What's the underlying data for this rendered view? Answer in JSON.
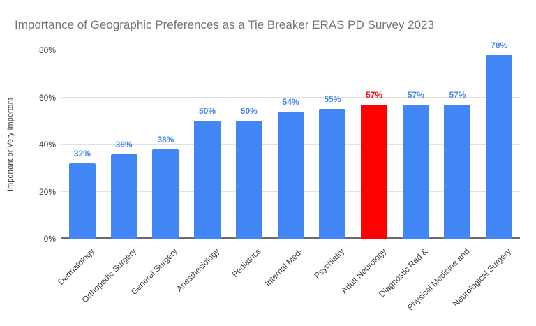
{
  "title": "Importance of Geographic Preferences as a Tie Breaker ERAS PD Survey 2023",
  "colors": {
    "bar": "#4285f4",
    "highlight": "#ff0000",
    "title_text": "#757575",
    "axis_text": "#424242",
    "gridline": "#e2e2e2",
    "baseline": "#6b6b6b",
    "background": "#ffffff"
  },
  "chart_data": {
    "type": "bar",
    "title": "Importance of Geographic Preferences as a Tie Breaker ERAS PD Survey 2023",
    "xlabel": "",
    "ylabel": "Important or Very Important",
    "ylim": [
      0,
      80
    ],
    "ytick_values": [
      0,
      20,
      40,
      60,
      80
    ],
    "ytick_labels": [
      "0%",
      "20%",
      "40%",
      "60%",
      "80%"
    ],
    "grid": true,
    "legend": "none",
    "categories": [
      "Dermatology",
      "Orthopedic Surgery",
      "General Surgery",
      "Anesthesiology",
      "Pediatrics",
      "Internal Med-",
      "Psychiatry",
      "Adult Neurology",
      "Diagnostic Rad &",
      "Physical Medicine and",
      "Neurological Surgery"
    ],
    "values": [
      32,
      36,
      38,
      50,
      50,
      54,
      55,
      57,
      57,
      57,
      78
    ],
    "value_labels": [
      "32%",
      "36%",
      "38%",
      "50%",
      "50%",
      "54%",
      "55%",
      "57%",
      "57%",
      "57%",
      "78%"
    ],
    "highlight_index": 7,
    "highlighted_category": "Adult Neurology"
  }
}
